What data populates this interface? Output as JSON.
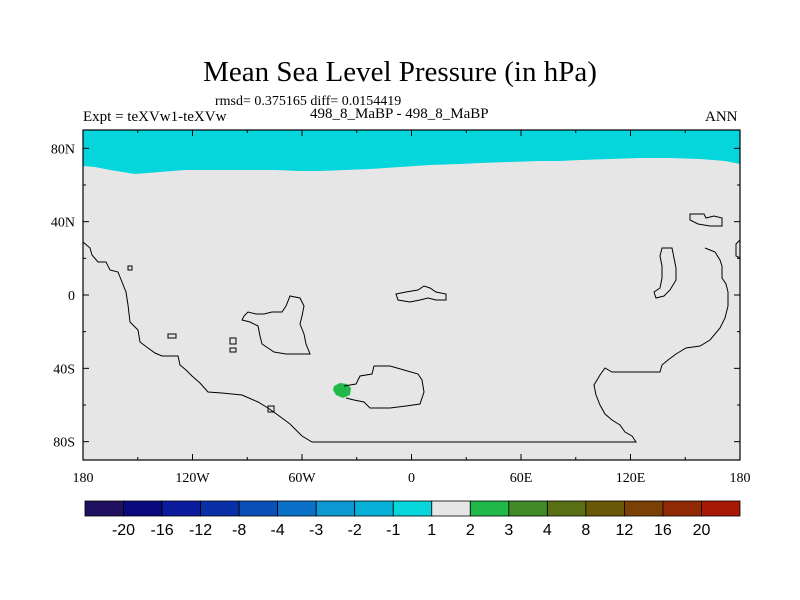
{
  "header": {
    "title": "Mean Sea Level Pressure (in hPa)",
    "stats": "rmsd= 0.375165 diff= 0.0154419",
    "left_label": "Expt = teXVw1-teXVw",
    "case_label": "498_8_MaBP - 498_8_MaBP",
    "season": "ANN"
  },
  "chart_data": {
    "type": "heatmap",
    "title": "Mean Sea Level Pressure (in hPa)",
    "subtitle": "rmsd= 0.375165 diff= 0.0154419",
    "x_axis": {
      "ticks": [
        "180",
        "120W",
        "60W",
        "0",
        "60E",
        "120E",
        "180"
      ],
      "range": [
        -180,
        180
      ]
    },
    "y_axis": {
      "ticks": [
        "80N",
        "40N",
        "0",
        "40S",
        "80S"
      ],
      "range": [
        -90,
        90
      ]
    },
    "field_summary": [
      {
        "region": "north of ~70N",
        "level": "-2 to -1"
      },
      {
        "region": "near 40W, 52S",
        "level": "1 to 2"
      },
      {
        "region": "elsewhere",
        "level": "-1 to 1"
      }
    ],
    "colorbar": {
      "levels": [
        "-20",
        "-16",
        "-12",
        "-8",
        "-4",
        "-3",
        "-2",
        "-1",
        "1",
        "2",
        "3",
        "4",
        "8",
        "12",
        "16",
        "20"
      ],
      "colors": [
        "#201060",
        "#0a0a80",
        "#0c1c9c",
        "#0a30a8",
        "#0a50b8",
        "#0a70c8",
        "#0c98d0",
        "#06b0d8",
        "#04d6dc",
        "#e6e6e6",
        "#20b848",
        "#408a28",
        "#5a6e14",
        "#6a5a08",
        "#7a4004",
        "#902a04",
        "#a81806"
      ]
    }
  },
  "colors": {
    "background_field": "#e6e6e6",
    "arctic_field": "#04d6dc",
    "positive_patch": "#20b848"
  }
}
